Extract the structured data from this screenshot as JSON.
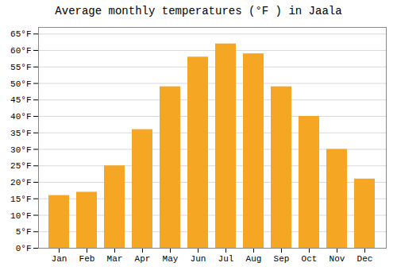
{
  "chart_data": {
    "type": "bar",
    "title": "Average monthly temperatures (°F ) in Jaala",
    "categories": [
      "Jan",
      "Feb",
      "Mar",
      "Apr",
      "May",
      "Jun",
      "Jul",
      "Aug",
      "Sep",
      "Oct",
      "Nov",
      "Dec"
    ],
    "values": [
      16,
      17,
      25,
      36,
      49,
      58,
      62,
      59,
      49,
      40,
      30,
      21
    ],
    "color": "#F5A623",
    "ylim": [
      0,
      67
    ],
    "yticks": [
      {
        "value": 0,
        "label": "0°F"
      },
      {
        "value": 5,
        "label": "5°F"
      },
      {
        "value": 10,
        "label": "10°F"
      },
      {
        "value": 15,
        "label": "15°F"
      },
      {
        "value": 20,
        "label": "20°F"
      },
      {
        "value": 25,
        "label": "25°F"
      },
      {
        "value": 30,
        "label": "30°F"
      },
      {
        "value": 35,
        "label": "35°F"
      },
      {
        "value": 40,
        "label": "40°F"
      },
      {
        "value": 45,
        "label": "45°F"
      },
      {
        "value": 50,
        "label": "50°F"
      },
      {
        "value": 55,
        "label": "55°F"
      },
      {
        "value": 60,
        "label": "60°F"
      },
      {
        "value": 65,
        "label": "65°F"
      }
    ],
    "grid": true
  }
}
